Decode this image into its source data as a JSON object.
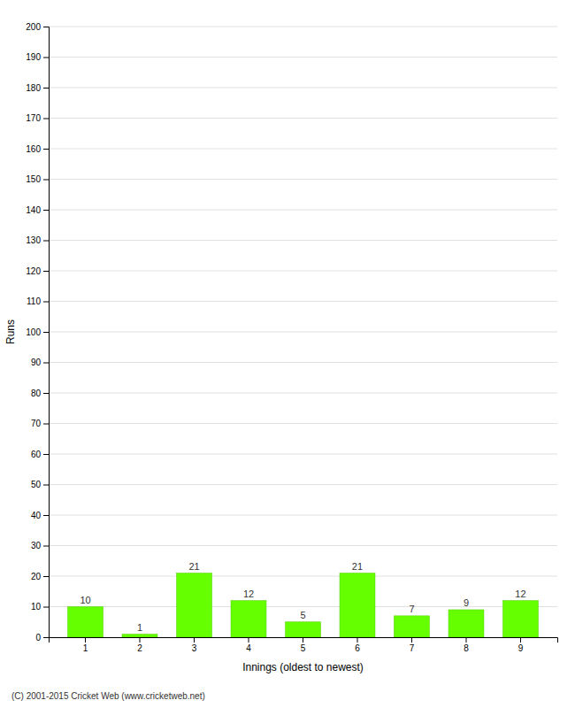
{
  "chart_data": {
    "type": "bar",
    "categories": [
      "1",
      "2",
      "3",
      "4",
      "5",
      "6",
      "7",
      "8",
      "9"
    ],
    "values": [
      10,
      1,
      21,
      12,
      5,
      21,
      7,
      9,
      12
    ],
    "color": "#66ff00",
    "xlabel": "Innings (oldest to newest)",
    "ylabel": "Runs",
    "ylim": [
      0,
      200
    ],
    "yticks": [
      0,
      10,
      20,
      30,
      40,
      50,
      60,
      70,
      80,
      90,
      100,
      110,
      120,
      130,
      140,
      150,
      160,
      170,
      180,
      190,
      200
    ],
    "grid": true,
    "data_labels": true,
    "annotations": [
      "(C) 2001-2015 Cricket Web (www.cricketweb.net)"
    ]
  }
}
